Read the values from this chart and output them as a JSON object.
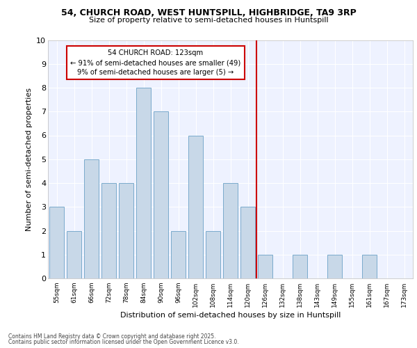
{
  "title1": "54, CHURCH ROAD, WEST HUNTSPILL, HIGHBRIDGE, TA9 3RP",
  "title2": "Size of property relative to semi-detached houses in Huntspill",
  "xlabel": "Distribution of semi-detached houses by size in Huntspill",
  "ylabel": "Number of semi-detached properties",
  "categories": [
    "55sqm",
    "61sqm",
    "66sqm",
    "72sqm",
    "78sqm",
    "84sqm",
    "90sqm",
    "96sqm",
    "102sqm",
    "108sqm",
    "114sqm",
    "120sqm",
    "126sqm",
    "132sqm",
    "138sqm",
    "143sqm",
    "149sqm",
    "155sqm",
    "161sqm",
    "167sqm",
    "173sqm"
  ],
  "values": [
    3,
    2,
    5,
    4,
    4,
    8,
    7,
    2,
    6,
    2,
    4,
    3,
    1,
    0,
    1,
    0,
    1,
    0,
    1,
    0,
    0
  ],
  "bar_color": "#c8d8e8",
  "bar_edgecolor": "#7aaacc",
  "vline_x_index": 11.5,
  "vline_color": "#cc0000",
  "annotation_title": "54 CHURCH ROAD: 123sqm",
  "annotation_line1": "← 91% of semi-detached houses are smaller (49)",
  "annotation_line2": "9% of semi-detached houses are larger (5) →",
  "annotation_box_color": "#cc0000",
  "ylim": [
    0,
    10
  ],
  "yticks": [
    0,
    1,
    2,
    3,
    4,
    5,
    6,
    7,
    8,
    9,
    10
  ],
  "bg_color": "#eef2ff",
  "plot_bg": "#eef2ff",
  "grid_color": "white",
  "footer1": "Contains HM Land Registry data © Crown copyright and database right 2025.",
  "footer2": "Contains public sector information licensed under the Open Government Licence v3.0."
}
